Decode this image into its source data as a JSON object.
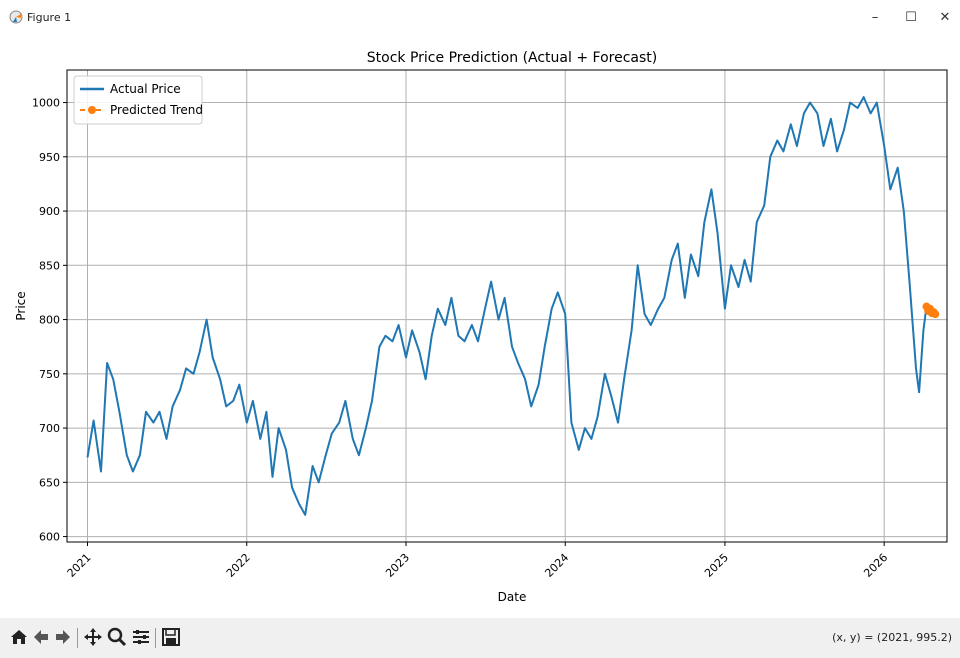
{
  "window": {
    "title": "Figure 1",
    "controls": {
      "minimize": "–",
      "maximize": "☐",
      "close": "✕"
    }
  },
  "toolbar": {
    "buttons": [
      "home-icon",
      "back-icon",
      "forward-icon",
      "pan-icon",
      "zoom-icon",
      "configure-subplots-icon",
      "save-icon"
    ],
    "coords_text": "(x, y) = (2021, 995.2)"
  },
  "colors": {
    "actual": "#1f77b4",
    "predicted": "#ff7f0e",
    "grid": "#b0b0b0",
    "toolbar_bg": "#f0f0f0"
  },
  "chart_data": {
    "type": "line",
    "title": "Stock Price Prediction (Actual + Forecast)",
    "xlabel": "Date",
    "ylabel": "Price",
    "grid": true,
    "legend": {
      "placement": "upper left",
      "entries": [
        "Actual Price",
        "Predicted Trend"
      ]
    },
    "ylim": [
      595,
      1030
    ],
    "xlim": [
      "2020-11-15",
      "2026-05-25"
    ],
    "x_ticks": [
      "2021",
      "2022",
      "2023",
      "2024",
      "2025",
      "2026"
    ],
    "y_ticks": [
      600,
      650,
      700,
      750,
      800,
      850,
      900,
      950,
      1000
    ],
    "series": [
      {
        "name": "Actual Price",
        "marker": "none",
        "style": "solid",
        "points": [
          [
            "2021-01-01",
            673
          ],
          [
            "2021-01-15",
            707
          ],
          [
            "2021-02-01",
            660
          ],
          [
            "2021-02-15",
            760
          ],
          [
            "2021-03-01",
            745
          ],
          [
            "2021-03-15",
            715
          ],
          [
            "2021-04-01",
            675
          ],
          [
            "2021-04-15",
            660
          ],
          [
            "2021-05-01",
            675
          ],
          [
            "2021-05-15",
            715
          ],
          [
            "2021-06-01",
            705
          ],
          [
            "2021-06-15",
            715
          ],
          [
            "2021-07-01",
            690
          ],
          [
            "2021-07-15",
            720
          ],
          [
            "2021-08-01",
            735
          ],
          [
            "2021-08-15",
            755
          ],
          [
            "2021-09-01",
            750
          ],
          [
            "2021-09-15",
            770
          ],
          [
            "2021-10-01",
            800
          ],
          [
            "2021-10-15",
            765
          ],
          [
            "2021-11-01",
            745
          ],
          [
            "2021-11-15",
            720
          ],
          [
            "2021-12-01",
            725
          ],
          [
            "2021-12-15",
            740
          ],
          [
            "2022-01-01",
            705
          ],
          [
            "2022-01-15",
            725
          ],
          [
            "2022-02-01",
            690
          ],
          [
            "2022-02-15",
            715
          ],
          [
            "2022-03-01",
            655
          ],
          [
            "2022-03-15",
            700
          ],
          [
            "2022-04-01",
            680
          ],
          [
            "2022-04-15",
            645
          ],
          [
            "2022-05-01",
            630
          ],
          [
            "2022-05-15",
            620
          ],
          [
            "2022-06-01",
            665
          ],
          [
            "2022-06-15",
            650
          ],
          [
            "2022-07-01",
            675
          ],
          [
            "2022-07-15",
            695
          ],
          [
            "2022-08-01",
            705
          ],
          [
            "2022-08-15",
            725
          ],
          [
            "2022-09-01",
            690
          ],
          [
            "2022-09-15",
            675
          ],
          [
            "2022-10-01",
            700
          ],
          [
            "2022-10-15",
            725
          ],
          [
            "2022-11-01",
            775
          ],
          [
            "2022-11-15",
            785
          ],
          [
            "2022-12-01",
            780
          ],
          [
            "2022-12-15",
            795
          ],
          [
            "2023-01-01",
            765
          ],
          [
            "2023-01-15",
            790
          ],
          [
            "2023-02-01",
            770
          ],
          [
            "2023-02-15",
            745
          ],
          [
            "2023-03-01",
            785
          ],
          [
            "2023-03-15",
            810
          ],
          [
            "2023-04-01",
            795
          ],
          [
            "2023-04-15",
            820
          ],
          [
            "2023-05-01",
            785
          ],
          [
            "2023-05-15",
            780
          ],
          [
            "2023-06-01",
            795
          ],
          [
            "2023-06-15",
            780
          ],
          [
            "2023-07-01",
            810
          ],
          [
            "2023-07-15",
            835
          ],
          [
            "2023-08-01",
            800
          ],
          [
            "2023-08-15",
            820
          ],
          [
            "2023-09-01",
            775
          ],
          [
            "2023-09-15",
            760
          ],
          [
            "2023-10-01",
            745
          ],
          [
            "2023-10-15",
            720
          ],
          [
            "2023-11-01",
            740
          ],
          [
            "2023-11-15",
            775
          ],
          [
            "2023-12-01",
            810
          ],
          [
            "2023-12-15",
            825
          ],
          [
            "2024-01-01",
            805
          ],
          [
            "2024-01-15",
            705
          ],
          [
            "2024-02-01",
            680
          ],
          [
            "2024-02-15",
            700
          ],
          [
            "2024-03-01",
            690
          ],
          [
            "2024-03-15",
            710
          ],
          [
            "2024-04-01",
            750
          ],
          [
            "2024-04-15",
            730
          ],
          [
            "2024-05-01",
            705
          ],
          [
            "2024-05-15",
            745
          ],
          [
            "2024-06-01",
            790
          ],
          [
            "2024-06-15",
            850
          ],
          [
            "2024-07-01",
            805
          ],
          [
            "2024-07-15",
            795
          ],
          [
            "2024-08-01",
            810
          ],
          [
            "2024-08-15",
            820
          ],
          [
            "2024-09-01",
            855
          ],
          [
            "2024-09-15",
            870
          ],
          [
            "2024-10-01",
            820
          ],
          [
            "2024-10-15",
            860
          ],
          [
            "2024-11-01",
            840
          ],
          [
            "2024-11-15",
            890
          ],
          [
            "2024-12-01",
            920
          ],
          [
            "2024-12-15",
            880
          ],
          [
            "2025-01-01",
            810
          ],
          [
            "2025-01-15",
            850
          ],
          [
            "2025-02-01",
            830
          ],
          [
            "2025-02-15",
            855
          ],
          [
            "2025-03-01",
            835
          ],
          [
            "2025-03-15",
            890
          ],
          [
            "2025-04-01",
            905
          ],
          [
            "2025-04-15",
            950
          ],
          [
            "2025-05-01",
            965
          ],
          [
            "2025-05-15",
            955
          ],
          [
            "2025-06-01",
            980
          ],
          [
            "2025-06-15",
            960
          ],
          [
            "2025-07-01",
            990
          ],
          [
            "2025-07-15",
            1000
          ],
          [
            "2025-08-01",
            990
          ],
          [
            "2025-08-15",
            960
          ],
          [
            "2025-09-01",
            985
          ],
          [
            "2025-09-15",
            955
          ],
          [
            "2025-10-01",
            975
          ],
          [
            "2025-10-15",
            1000
          ],
          [
            "2025-11-01",
            995
          ],
          [
            "2025-11-15",
            1005
          ],
          [
            "2025-12-01",
            990
          ],
          [
            "2025-12-15",
            1000
          ],
          [
            "2026-01-01",
            960
          ],
          [
            "2026-01-15",
            920
          ],
          [
            "2026-02-01",
            940
          ],
          [
            "2026-02-15",
            900
          ],
          [
            "2026-03-01",
            830
          ],
          [
            "2026-03-15",
            755
          ],
          [
            "2026-03-22",
            733
          ],
          [
            "2026-04-01",
            790
          ],
          [
            "2026-04-08",
            812
          ]
        ]
      },
      {
        "name": "Predicted Trend",
        "marker": "o",
        "style": "dashed",
        "points": [
          [
            "2026-04-08",
            812
          ],
          [
            "2026-04-12",
            808
          ],
          [
            "2026-04-16",
            810
          ],
          [
            "2026-04-20",
            806
          ],
          [
            "2026-04-24",
            807
          ],
          [
            "2026-04-28",
            805
          ]
        ]
      }
    ]
  }
}
